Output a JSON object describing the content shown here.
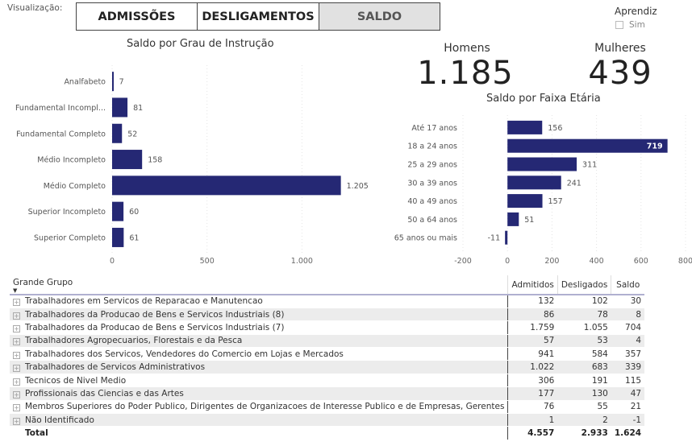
{
  "filter": {
    "label": "Visualização:",
    "tabs": [
      {
        "label": "ADMISSÕES",
        "active": false
      },
      {
        "label": "DESLIGAMENTOS",
        "active": false
      },
      {
        "label": "SALDO",
        "active": true
      }
    ]
  },
  "aprendiz": {
    "title": "Aprendiz",
    "option_label": "Sim",
    "checked": false
  },
  "kpis": {
    "homens": {
      "label": "Homens",
      "value": "1.185"
    },
    "mulheres": {
      "label": "Mulheres",
      "value": "439"
    }
  },
  "colors": {
    "bar": "#252874",
    "bar_label_inside": "#ffffff"
  },
  "chart_data": [
    {
      "type": "bar",
      "orientation": "horizontal",
      "title": "Saldo por Grau de Instrução",
      "categories": [
        "Analfabeto",
        "Fundamental Incompl...",
        "Fundamental Completo",
        "Médio Incompleto",
        "Médio Completo",
        "Superior Incompleto",
        "Superior Completo"
      ],
      "values": [
        7,
        81,
        52,
        158,
        1205,
        60,
        61
      ],
      "data_labels": [
        "7",
        "81",
        "52",
        "158",
        "1.205",
        "60",
        "61"
      ],
      "xlim": [
        0,
        1300
      ],
      "xticks": [
        0,
        500,
        1000
      ],
      "xtick_labels": [
        "0",
        "500",
        "1.000"
      ],
      "grid": true,
      "xlabel": "",
      "ylabel": ""
    },
    {
      "type": "bar",
      "orientation": "horizontal",
      "title": "Saldo por Faixa Etária",
      "categories": [
        "Até 17 anos",
        "18 a 24 anos",
        "25 a 29 anos",
        "30 a 39 anos",
        "40 a 49 anos",
        "50 a 64 anos",
        "65 anos ou mais"
      ],
      "values": [
        156,
        719,
        311,
        241,
        157,
        51,
        -11
      ],
      "data_labels": [
        "156",
        "719",
        "311",
        "241",
        "157",
        "51",
        "-11"
      ],
      "xlim": [
        -200,
        800
      ],
      "xticks": [
        -200,
        0,
        200,
        400,
        600,
        800
      ],
      "xtick_labels": [
        "-200",
        "0",
        "200",
        "400",
        "600",
        "800"
      ],
      "grid": true,
      "xlabel": "",
      "ylabel": ""
    }
  ],
  "table": {
    "columns": [
      "Grande Grupo",
      "Admitidos",
      "Desligados",
      "Saldo"
    ],
    "rows": [
      {
        "grupo": "Trabalhadores em Servicos de Reparacao e Manutencao",
        "admitidos": "132",
        "desligados": "102",
        "saldo": "30"
      },
      {
        "grupo": "Trabalhadores da Producao de Bens e Servicos Industriais (8)",
        "admitidos": "86",
        "desligados": "78",
        "saldo": "8"
      },
      {
        "grupo": "Trabalhadores da Producao de Bens e Servicos Industriais (7)",
        "admitidos": "1.759",
        "desligados": "1.055",
        "saldo": "704"
      },
      {
        "grupo": "Trabalhadores Agropecuarios, Florestais e da Pesca",
        "admitidos": "57",
        "desligados": "53",
        "saldo": "4"
      },
      {
        "grupo": "Trabalhadores dos Servicos, Vendedores do Comercio em Lojas e Mercados",
        "admitidos": "941",
        "desligados": "584",
        "saldo": "357"
      },
      {
        "grupo": "Trabalhadores de Servicos Administrativos",
        "admitidos": "1.022",
        "desligados": "683",
        "saldo": "339"
      },
      {
        "grupo": "Tecnicos de Nivel Medio",
        "admitidos": "306",
        "desligados": "191",
        "saldo": "115"
      },
      {
        "grupo": "Profissionais das Ciencias e das Artes",
        "admitidos": "177",
        "desligados": "130",
        "saldo": "47"
      },
      {
        "grupo": "Membros Superiores do Poder Publico, Dirigentes de Organizacoes de Interesse Publico e de Empresas, Gerentes",
        "admitidos": "76",
        "desligados": "55",
        "saldo": "21"
      },
      {
        "grupo": "Não Identificado",
        "admitidos": "1",
        "desligados": "2",
        "saldo": "-1"
      }
    ],
    "total": {
      "label": "Total",
      "admitidos": "4.557",
      "desligados": "2.933",
      "saldo": "1.624"
    }
  }
}
